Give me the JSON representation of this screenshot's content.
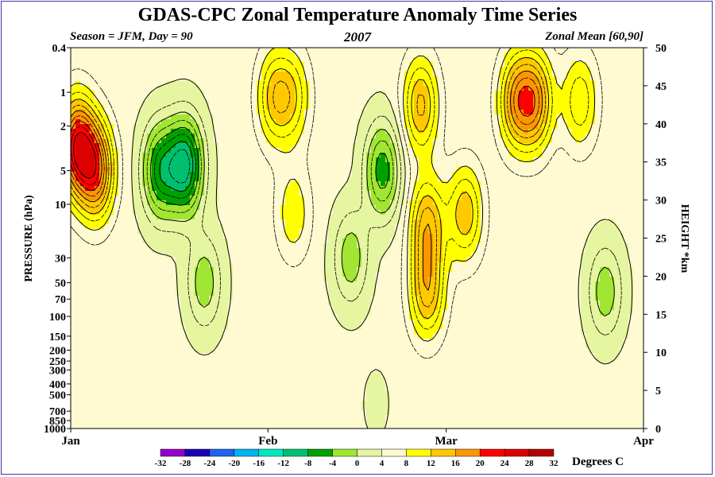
{
  "title": "GDAS-CPC Zonal Temperature Anomaly Time Series",
  "subtitle_left": "Season = JFM, Day =  90",
  "subtitle_center": "2007",
  "subtitle_right": "Zonal Mean [60,90]",
  "chart_data": {
    "type": "heatmap",
    "xlabel": "",
    "ylabel_left": "PRESSURE (hPa)",
    "ylabel_right": "HEIGHT *km",
    "x_ticks": [
      {
        "label": "Jan",
        "day": 0
      },
      {
        "label": "Feb",
        "day": 31
      },
      {
        "label": "Mar",
        "day": 59
      },
      {
        "label": "Apr",
        "day": 90
      }
    ],
    "x_range_days": [
      0,
      90
    ],
    "pressure_ticks": [
      0.4,
      1,
      2,
      5,
      10,
      30,
      50,
      70,
      100,
      150,
      200,
      250,
      300,
      400,
      500,
      700,
      850,
      1000
    ],
    "pressure_range_hpa": [
      1000,
      0.4
    ],
    "pressure_axis": "log",
    "height_ticks_km": [
      0,
      5,
      10,
      15,
      20,
      25,
      30,
      35,
      40,
      45,
      50
    ],
    "colorbar": {
      "label": "Degrees C",
      "levels": [
        -32,
        -28,
        -24,
        -20,
        -16,
        -12,
        -8,
        -4,
        0,
        4,
        8,
        12,
        16,
        20,
        24,
        28,
        32
      ],
      "colors": [
        "#9400c8",
        "#1a00b4",
        "#1e64f0",
        "#00b4f0",
        "#00e8c0",
        "#00c070",
        "#00a000",
        "#a0e632",
        "#e6f5a0",
        "#fffad2",
        "#ffff00",
        "#ffc800",
        "#ff9600",
        "#ff0000",
        "#dc0000",
        "#b40000",
        "#8c0000",
        "#a08050"
      ]
    },
    "contour_interval": 4,
    "features": [
      {
        "x_day": 1,
        "pressure_hpa": 3,
        "anomaly_c": 18
      },
      {
        "x_day": 4,
        "pressure_hpa": 5,
        "anomaly_c": 15
      },
      {
        "x_day": 18,
        "pressure_hpa": 4.5,
        "anomaly_c": -15
      },
      {
        "x_day": 14,
        "pressure_hpa": 5,
        "anomaly_c": -11
      },
      {
        "x_day": 21,
        "pressure_hpa": 50,
        "anomaly_c": -6
      },
      {
        "x_day": 32,
        "pressure_hpa": 1.1,
        "anomaly_c": 8
      },
      {
        "x_day": 35,
        "pressure_hpa": 1.1,
        "anomaly_c": 6
      },
      {
        "x_day": 35,
        "pressure_hpa": 12,
        "anomaly_c": 5
      },
      {
        "x_day": 44,
        "pressure_hpa": 30,
        "anomaly_c": -6
      },
      {
        "x_day": 49,
        "pressure_hpa": 5,
        "anomaly_c": -10
      },
      {
        "x_day": 55,
        "pressure_hpa": 1.3,
        "anomaly_c": 10
      },
      {
        "x_day": 56,
        "pressure_hpa": 15,
        "anomaly_c": 10
      },
      {
        "x_day": 56,
        "pressure_hpa": 60,
        "anomaly_c": 10
      },
      {
        "x_day": 62,
        "pressure_hpa": 12,
        "anomaly_c": 9
      },
      {
        "x_day": 70,
        "pressure_hpa": 1.2,
        "anomaly_c": 11
      },
      {
        "x_day": 73,
        "pressure_hpa": 1.2,
        "anomaly_c": 12
      },
      {
        "x_day": 80,
        "pressure_hpa": 1.2,
        "anomaly_c": 7
      },
      {
        "x_day": 84,
        "pressure_hpa": 60,
        "anomaly_c": -6
      },
      {
        "x_day": 48,
        "pressure_hpa": 600,
        "anomaly_c": -1
      },
      {
        "x_day": 70,
        "pressure_hpa": 500,
        "anomaly_c": 1
      }
    ]
  }
}
